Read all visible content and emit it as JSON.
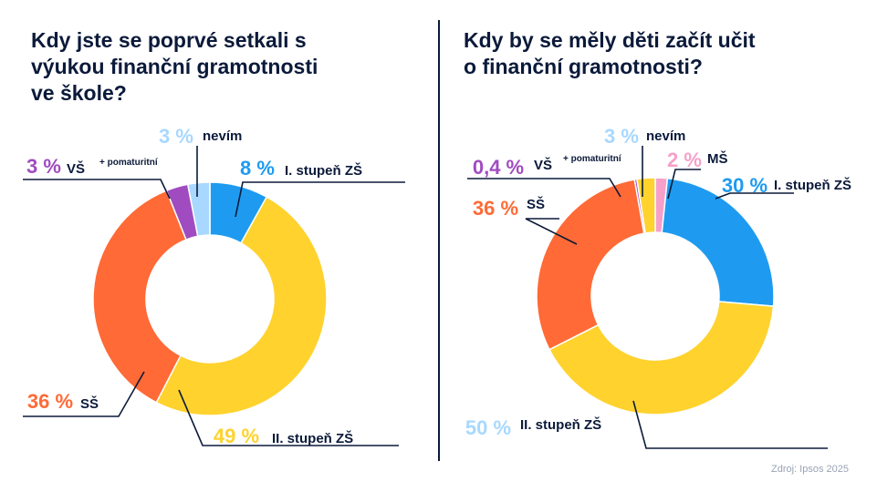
{
  "chart_data": [
    {
      "type": "pie",
      "donut": true,
      "title": "Kdy jste se poprvé setkali s výukou finanční gramotnosti ve škole?",
      "title_lines": [
        "Kdy jste se poprvé setkali s",
        "výukou finanční gramotnosti",
        "ve škole?"
      ],
      "slices": [
        {
          "label": "I. stupeň ZŠ",
          "value": 8,
          "pct_text": "8 %",
          "color": "#1e9bf0"
        },
        {
          "label": "II. stupeň ZŠ",
          "value": 49,
          "pct_text": "49 %",
          "color": "#ffd22e"
        },
        {
          "label": "SŠ",
          "value": 36,
          "pct_text": "36 %",
          "color": "#ff6a36"
        },
        {
          "label": "VŠ",
          "sublabel": "+ pomaturitní",
          "value": 3,
          "pct_text": "3 %",
          "color": "#a04cc0"
        },
        {
          "label": "nevím",
          "value": 3,
          "pct_text": "3 %",
          "color": "#a8d8ff"
        }
      ]
    },
    {
      "type": "pie",
      "donut": true,
      "title": "Kdy by se měly děti začít učit o finanční gramotnosti?",
      "title_lines": [
        "Kdy by se měly děti začít učit",
        "o finanční gramotnosti?"
      ],
      "slices": [
        {
          "label": "MŠ",
          "value": 2,
          "pct_text": "2 %",
          "color": "#f6a0c9"
        },
        {
          "label": "I. stupeň ZŠ",
          "value": 30,
          "pct_text": "30 %",
          "color": "#1e9bf0"
        },
        {
          "label": "II. stupeň ZŠ",
          "value": 50,
          "pct_text": "50 %",
          "color": "#ffd22e"
        },
        {
          "label": "SŠ",
          "value": 36,
          "pct_text": "36 %",
          "color": "#ff6a36"
        },
        {
          "label": "VŠ",
          "sublabel": "+ pomaturitní",
          "value": 0.4,
          "pct_text": "0,4 %",
          "color": "#a04cc0"
        },
        {
          "label": "nevím",
          "value": 3,
          "pct_text": "3 %",
          "color": "#ffd22e"
        }
      ]
    }
  ],
  "text_color": "#0b1a3a",
  "source": "Zdroj: Ipsos 2025"
}
